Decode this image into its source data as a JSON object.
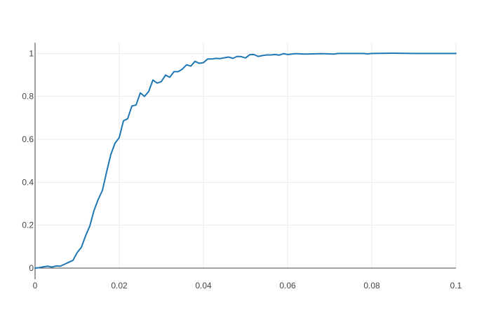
{
  "chart_data": {
    "type": "line",
    "title": "",
    "xlabel": "",
    "ylabel": "",
    "xlim": [
      0,
      0.1
    ],
    "ylim": [
      0,
      1.05
    ],
    "grid": true,
    "legend": "none",
    "x_ticks": [
      {
        "value": 0,
        "label": "0"
      },
      {
        "value": 0.02,
        "label": "0.02"
      },
      {
        "value": 0.04,
        "label": "0.04"
      },
      {
        "value": 0.06,
        "label": "0.06"
      },
      {
        "value": 0.08,
        "label": "0.08"
      },
      {
        "value": 0.1,
        "label": "0.1"
      }
    ],
    "y_ticks": [
      {
        "value": 0,
        "label": "0"
      },
      {
        "value": 0.2,
        "label": "0.2"
      },
      {
        "value": 0.4,
        "label": "0.4"
      },
      {
        "value": 0.6,
        "label": "0.6"
      },
      {
        "value": 0.8,
        "label": "0.8"
      },
      {
        "value": 1,
        "label": "1"
      }
    ],
    "series": [
      {
        "color": "#1f77b4",
        "points": [
          [
            0,
            0
          ],
          [
            0.001,
            0.002
          ],
          [
            0.002,
            0.006
          ],
          [
            0.003,
            0.009
          ],
          [
            0.004,
            0.005
          ],
          [
            0.005,
            0.01
          ],
          [
            0.006,
            0.009
          ],
          [
            0.007,
            0.018
          ],
          [
            0.008,
            0.027
          ],
          [
            0.009,
            0.036
          ],
          [
            0.01,
            0.072
          ],
          [
            0.011,
            0.097
          ],
          [
            0.012,
            0.15
          ],
          [
            0.013,
            0.196
          ],
          [
            0.014,
            0.268
          ],
          [
            0.015,
            0.32
          ],
          [
            0.016,
            0.362
          ],
          [
            0.017,
            0.448
          ],
          [
            0.018,
            0.529
          ],
          [
            0.019,
            0.582
          ],
          [
            0.02,
            0.608
          ],
          [
            0.021,
            0.686
          ],
          [
            0.022,
            0.696
          ],
          [
            0.023,
            0.755
          ],
          [
            0.024,
            0.76
          ],
          [
            0.025,
            0.816
          ],
          [
            0.026,
            0.8
          ],
          [
            0.027,
            0.823
          ],
          [
            0.028,
            0.876
          ],
          [
            0.029,
            0.862
          ],
          [
            0.03,
            0.869
          ],
          [
            0.031,
            0.899
          ],
          [
            0.032,
            0.889
          ],
          [
            0.033,
            0.915
          ],
          [
            0.034,
            0.915
          ],
          [
            0.035,
            0.927
          ],
          [
            0.036,
            0.947
          ],
          [
            0.037,
            0.941
          ],
          [
            0.038,
            0.963
          ],
          [
            0.039,
            0.954
          ],
          [
            0.04,
            0.957
          ],
          [
            0.041,
            0.974
          ],
          [
            0.042,
            0.974
          ],
          [
            0.043,
            0.977
          ],
          [
            0.044,
            0.976
          ],
          [
            0.045,
            0.98
          ],
          [
            0.046,
            0.983
          ],
          [
            0.047,
            0.977
          ],
          [
            0.048,
            0.986
          ],
          [
            0.049,
            0.985
          ],
          [
            0.05,
            0.979
          ],
          [
            0.051,
            0.994
          ],
          [
            0.052,
            0.995
          ],
          [
            0.053,
            0.986
          ],
          [
            0.054,
            0.99
          ],
          [
            0.055,
            0.993
          ],
          [
            0.056,
            0.993
          ],
          [
            0.057,
            0.995
          ],
          [
            0.058,
            0.992
          ],
          [
            0.059,
            0.999
          ],
          [
            0.06,
            0.995
          ],
          [
            0.062,
            0.999
          ],
          [
            0.064,
            0.997
          ],
          [
            0.066,
            0.998
          ],
          [
            0.068,
            0.999
          ],
          [
            0.07,
            0.998
          ],
          [
            0.071,
            0.997
          ],
          [
            0.072,
            1.0
          ],
          [
            0.074,
            1.0
          ],
          [
            0.076,
            1.0
          ],
          [
            0.078,
            1.0
          ],
          [
            0.079,
            0.998
          ],
          [
            0.08,
            1.0
          ],
          [
            0.085,
            1.001
          ],
          [
            0.09,
            1.0
          ],
          [
            0.095,
            1.0
          ],
          [
            0.1,
            1.0
          ]
        ]
      }
    ]
  }
}
